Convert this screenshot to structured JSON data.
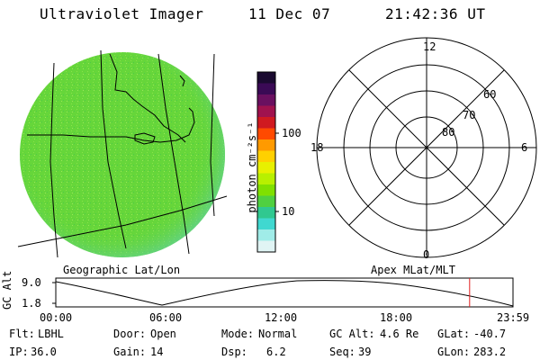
{
  "header": {
    "instrument": "Ultraviolet Imager",
    "date": "11 Dec 07",
    "time": "21:42:36 UT"
  },
  "geo_panel": {
    "caption": "Geographic Lat/Lon",
    "fill_color": "#66d63a"
  },
  "color_bar": {
    "unit_label": "photon cm⁻²s⁻¹",
    "ticks": [
      "100",
      "10"
    ],
    "colors": [
      "#1a0a30",
      "#3a0a55",
      "#6a1060",
      "#a0124e",
      "#d01a20",
      "#ff4a00",
      "#ff9a00",
      "#ffd000",
      "#e8f000",
      "#b8f000",
      "#80e000",
      "#50d040",
      "#30c890",
      "#40d8d0",
      "#a0ece8",
      "#e0f4f4"
    ]
  },
  "polar_plot": {
    "caption": "Apex MLat/MLT",
    "mlt_labels": {
      "top": "12",
      "left": "18",
      "right": "6",
      "bottom": "0"
    },
    "mlat_labels": [
      "60",
      "70",
      "80"
    ]
  },
  "timeline": {
    "axis_label": "GC Alt",
    "y_labels": [
      "9.0",
      "1.8"
    ],
    "x_labels": [
      "00:00",
      "06:00",
      "12:00",
      "18:00",
      "23:59"
    ],
    "marker_color": "#e02020",
    "marker_time": "21:42:36"
  },
  "status": [
    {
      "label": "Flt:",
      "value": "LBHL"
    },
    {
      "label": "Door:",
      "value": "Open"
    },
    {
      "label": "Mode:",
      "value": "Normal"
    },
    {
      "label": "GC Alt:",
      "value": "4.6 Re"
    },
    {
      "label": "GLat:",
      "value": "-40.7"
    },
    {
      "label": "IP:",
      "value": "36.0"
    },
    {
      "label": "Gain:",
      "value": "14"
    },
    {
      "label": "Dsp:",
      "value": "6.2"
    },
    {
      "label": "Seq:",
      "value": "39"
    },
    {
      "label": "GLon:",
      "value": "283.2"
    }
  ]
}
